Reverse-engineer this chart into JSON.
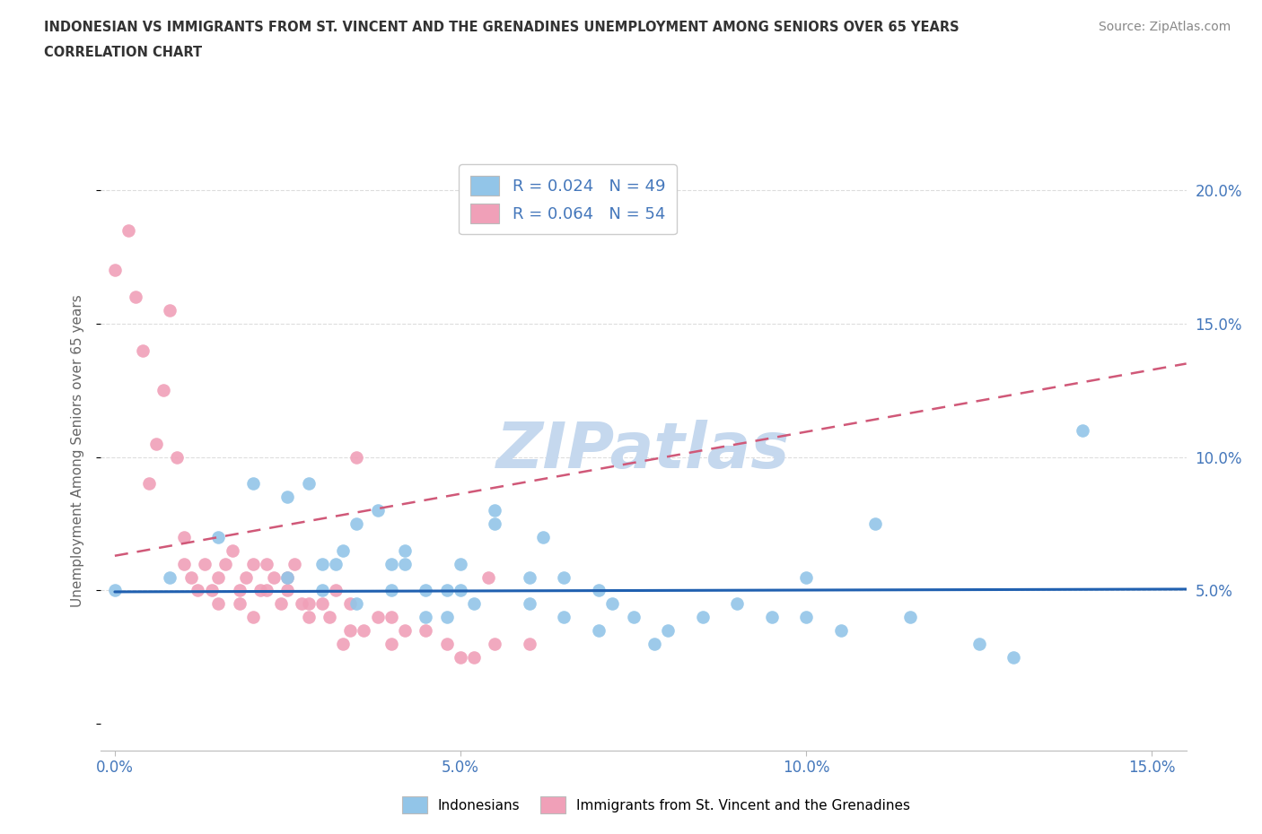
{
  "title_line1": "INDONESIAN VS IMMIGRANTS FROM ST. VINCENT AND THE GRENADINES UNEMPLOYMENT AMONG SENIORS OVER 65 YEARS",
  "title_line2": "CORRELATION CHART",
  "source": "Source: ZipAtlas.com",
  "ylabel": "Unemployment Among Seniors over 65 years",
  "xlim": [
    -0.002,
    0.155
  ],
  "ylim": [
    -0.01,
    0.215
  ],
  "yticks": [
    0.0,
    0.05,
    0.1,
    0.15,
    0.2
  ],
  "ytick_labels": [
    "",
    "5.0%",
    "10.0%",
    "15.0%",
    "20.0%"
  ],
  "xticks": [
    0.0,
    0.05,
    0.1,
    0.15
  ],
  "xtick_labels": [
    "0.0%",
    "5.0%",
    "10.0%",
    "15.0%"
  ],
  "color_blue": "#92C5E8",
  "color_pink": "#F0A0B8",
  "color_line_blue": "#2060B0",
  "color_line_pink": "#D05878",
  "title_color": "#333333",
  "source_color": "#888888",
  "axis_color": "#4477BB",
  "grid_color": "#DDDDDD",
  "watermark_color": "#C5D8EE",
  "indonesian_x": [
    0.0,
    0.008,
    0.015,
    0.02,
    0.025,
    0.025,
    0.028,
    0.03,
    0.03,
    0.032,
    0.033,
    0.035,
    0.035,
    0.038,
    0.04,
    0.04,
    0.042,
    0.042,
    0.045,
    0.045,
    0.048,
    0.048,
    0.05,
    0.05,
    0.052,
    0.055,
    0.055,
    0.06,
    0.06,
    0.062,
    0.065,
    0.065,
    0.07,
    0.07,
    0.072,
    0.075,
    0.078,
    0.08,
    0.085,
    0.09,
    0.095,
    0.1,
    0.1,
    0.105,
    0.11,
    0.115,
    0.125,
    0.13,
    0.14
  ],
  "indonesian_y": [
    0.05,
    0.055,
    0.07,
    0.09,
    0.085,
    0.055,
    0.09,
    0.05,
    0.06,
    0.06,
    0.065,
    0.045,
    0.075,
    0.08,
    0.05,
    0.06,
    0.06,
    0.065,
    0.05,
    0.04,
    0.05,
    0.04,
    0.05,
    0.06,
    0.045,
    0.075,
    0.08,
    0.045,
    0.055,
    0.07,
    0.04,
    0.055,
    0.035,
    0.05,
    0.045,
    0.04,
    0.03,
    0.035,
    0.04,
    0.045,
    0.04,
    0.055,
    0.04,
    0.035,
    0.075,
    0.04,
    0.03,
    0.025,
    0.11
  ],
  "svg_x": [
    0.0,
    0.002,
    0.003,
    0.004,
    0.005,
    0.006,
    0.007,
    0.008,
    0.009,
    0.01,
    0.01,
    0.011,
    0.012,
    0.013,
    0.014,
    0.015,
    0.015,
    0.016,
    0.017,
    0.018,
    0.018,
    0.019,
    0.02,
    0.02,
    0.021,
    0.022,
    0.022,
    0.023,
    0.024,
    0.025,
    0.025,
    0.026,
    0.027,
    0.028,
    0.028,
    0.03,
    0.031,
    0.032,
    0.033,
    0.034,
    0.034,
    0.035,
    0.036,
    0.038,
    0.04,
    0.04,
    0.042,
    0.045,
    0.048,
    0.05,
    0.052,
    0.054,
    0.055,
    0.06
  ],
  "svg_y": [
    0.17,
    0.185,
    0.16,
    0.14,
    0.09,
    0.105,
    0.125,
    0.155,
    0.1,
    0.06,
    0.07,
    0.055,
    0.05,
    0.06,
    0.05,
    0.055,
    0.045,
    0.06,
    0.065,
    0.05,
    0.045,
    0.055,
    0.06,
    0.04,
    0.05,
    0.05,
    0.06,
    0.055,
    0.045,
    0.05,
    0.055,
    0.06,
    0.045,
    0.045,
    0.04,
    0.045,
    0.04,
    0.05,
    0.03,
    0.045,
    0.035,
    0.1,
    0.035,
    0.04,
    0.04,
    0.03,
    0.035,
    0.035,
    0.03,
    0.025,
    0.025,
    0.055,
    0.03,
    0.03
  ],
  "blue_trend_x": [
    0.0,
    0.155
  ],
  "blue_trend_y": [
    0.0495,
    0.0505
  ],
  "pink_trend_x": [
    0.0,
    0.155
  ],
  "pink_trend_y": [
    0.063,
    0.135
  ]
}
